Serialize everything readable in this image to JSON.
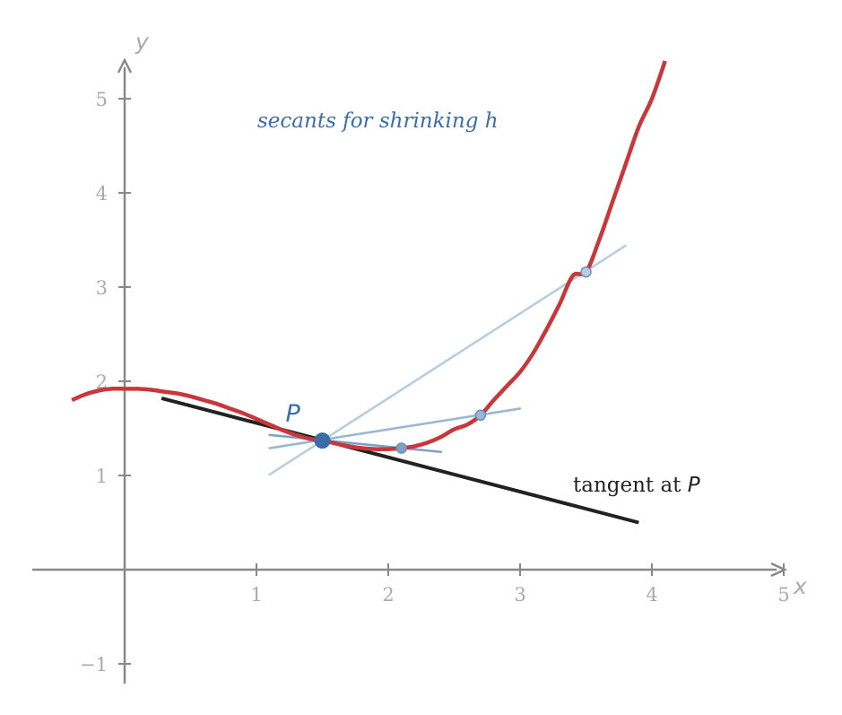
{
  "chart_data": {
    "type": "line",
    "x_axis": {
      "label": "x",
      "range": [
        -0.7,
        5
      ],
      "ticks": [
        1,
        2,
        3,
        4,
        5
      ],
      "tick_labels": [
        "1",
        "2",
        "3",
        "4",
        "5"
      ]
    },
    "y_axis": {
      "label": "y",
      "range": [
        -1.2,
        5.4
      ],
      "ticks": [
        -1,
        1,
        2,
        3,
        4,
        5
      ],
      "tick_labels": [
        "−1",
        "1",
        "2",
        "3",
        "4",
        "5"
      ]
    },
    "grid": false,
    "curve": {
      "color": "#c8373a",
      "x": [
        -0.4,
        -0.3,
        -0.2,
        -0.1,
        0,
        0.1,
        0.2,
        0.3,
        0.4,
        0.5,
        0.6,
        0.7,
        0.8,
        0.9,
        1,
        1.1,
        1.2,
        1.3,
        1.4,
        1.5,
        1.6,
        1.7,
        1.8,
        1.9,
        2,
        2.1,
        2.2,
        2.3,
        2.4,
        2.5,
        2.6,
        2.7,
        2.8,
        2.9,
        3,
        3.1,
        3.2,
        3.3,
        3.4,
        3.5,
        3.6,
        3.7,
        3.8,
        3.9,
        4,
        4.1
      ],
      "y": [
        1.8,
        1.86,
        1.9,
        1.92,
        1.92,
        1.92,
        1.91,
        1.89,
        1.87,
        1.84,
        1.8,
        1.76,
        1.71,
        1.66,
        1.6,
        1.54,
        1.48,
        1.43,
        1.39,
        1.37,
        1.34,
        1.31,
        1.29,
        1.28,
        1.28,
        1.29,
        1.31,
        1.35,
        1.41,
        1.49,
        1.54,
        1.64,
        1.8,
        1.95,
        2.1,
        2.3,
        2.55,
        2.82,
        3.12,
        3.16,
        3.5,
        3.9,
        4.3,
        4.7,
        5.0,
        5.4
      ]
    },
    "point_P": {
      "label": "P",
      "x": 1.5,
      "y": 1.37,
      "color": "#3a6ea5"
    },
    "tangent": {
      "label_text": "tangent at ",
      "label_var": "P",
      "color": "#222222",
      "from": [
        0.28,
        1.82
      ],
      "to": [
        3.9,
        0.5
      ]
    },
    "secants": [
      {
        "color": "#b9cde0",
        "from": [
          1.1,
          1.01
        ],
        "to": [
          3.8,
          3.44
        ],
        "point": [
          3.5,
          3.16
        ]
      },
      {
        "color": "#9ab7d4",
        "from": [
          1.1,
          1.29
        ],
        "to": [
          3.0,
          1.71
        ],
        "point": [
          2.7,
          1.64
        ]
      },
      {
        "color": "#7ea2c7",
        "from": [
          1.1,
          1.43
        ],
        "to": [
          2.4,
          1.25
        ],
        "point": [
          2.1,
          1.29
        ]
      }
    ],
    "annotation": {
      "text": "secants for shrinking h",
      "color": "#3a6ea5"
    }
  }
}
